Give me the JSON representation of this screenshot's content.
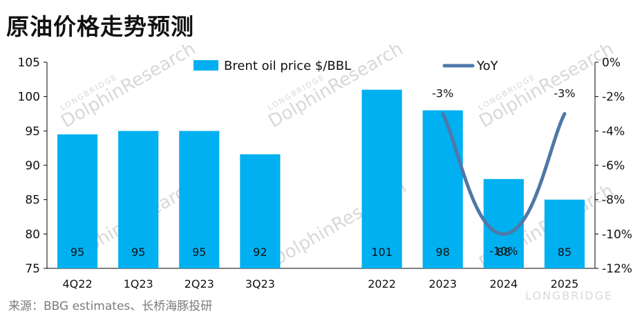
{
  "title": "原油价格走势预测",
  "source": "来源：BBG estimates、长桥海豚投研",
  "watermark": {
    "brand": "DolphinResearch",
    "sub": "LONGBRIDGE",
    "logo": "LONGBRIDGE"
  },
  "colors": {
    "bar": "#00b0f0",
    "line": "#4f78a8",
    "axis": "#000000",
    "text": "#111111"
  },
  "chart_data": {
    "type": "bar",
    "title": "原油价格走势预测",
    "categories": [
      "4Q22",
      "1Q23",
      "2Q23",
      "3Q23",
      "",
      "2022",
      "2023",
      "2024",
      "2025"
    ],
    "series": [
      {
        "name": "Brent oil price $/BBL",
        "type": "bar",
        "axis": "left",
        "values": [
          94.5,
          95,
          95,
          91.6,
          null,
          101,
          98,
          88,
          85
        ],
        "labels": [
          "95",
          "95",
          "95",
          "92",
          "",
          "101",
          "98",
          "88",
          "85"
        ]
      },
      {
        "name": "YoY",
        "type": "line",
        "axis": "right",
        "x": [
          "2023",
          "2024",
          "2025"
        ],
        "values": [
          -3,
          -10,
          -3
        ],
        "labels": [
          "-3%",
          "-10%",
          "-3%"
        ]
      }
    ],
    "y_left": {
      "min": 75,
      "max": 105,
      "ticks": [
        "105",
        "100",
        "95",
        "90",
        "85",
        "80",
        "75"
      ]
    },
    "y_right": {
      "min": -12,
      "max": 0,
      "ticks": [
        "0%",
        "-2%",
        "-4%",
        "-6%",
        "-8%",
        "-10%",
        "-12%"
      ]
    },
    "grid": false,
    "legend": "top"
  }
}
